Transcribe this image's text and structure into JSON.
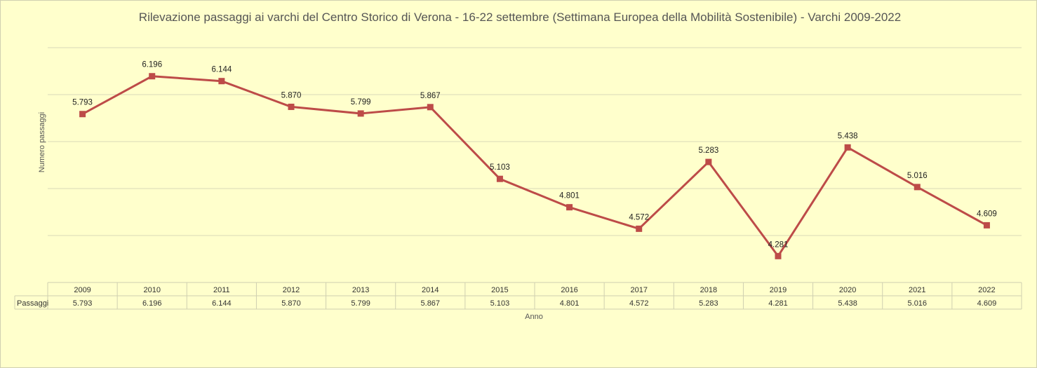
{
  "chart_data": {
    "type": "line",
    "title": "Rilevazione passaggi ai varchi del Centro Storico di Verona - 16-22 settembre (Settimana Europea della Mobilità Sostenibile) - Varchi 2009-2022",
    "xlabel": "Anno",
    "ylabel": "Numero passaggi",
    "categories": [
      "2009",
      "2010",
      "2011",
      "2012",
      "2013",
      "2014",
      "2015",
      "2016",
      "2017",
      "2018",
      "2019",
      "2020",
      "2021",
      "2022"
    ],
    "series": [
      {
        "name": "Passaggi",
        "values": [
          5793,
          6196,
          6144,
          5870,
          5799,
          5867,
          5103,
          4801,
          4572,
          5283,
          4281,
          5438,
          5016,
          4609
        ],
        "labels": [
          "5.793",
          "6.196",
          "6.144",
          "5.870",
          "5.799",
          "5.867",
          "5.103",
          "4.801",
          "4.572",
          "5.283",
          "4.281",
          "5.438",
          "5.016",
          "4.609"
        ]
      }
    ],
    "ylim": [
      4000,
      6500
    ],
    "grid": true,
    "legend": "none",
    "data_table": true,
    "colors": {
      "series": "#bd4b48",
      "background": "#ffffcc",
      "grid": "#d8d8b8"
    }
  }
}
